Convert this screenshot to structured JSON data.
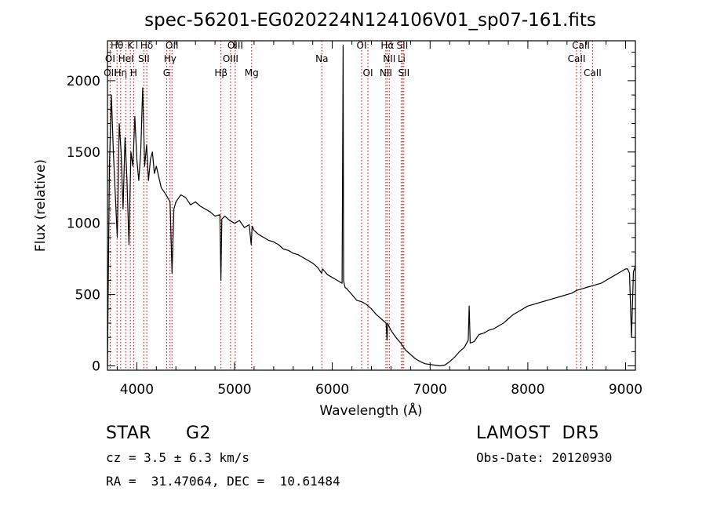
{
  "chart_data": {
    "type": "line",
    "title": "spec-56201-EG020224N124106V01_sp07-161.fits",
    "xlabel": "Wavelength (Å)",
    "ylabel": "Flux (relative)",
    "xlim": [
      3700,
      9100
    ],
    "ylim": [
      -30,
      2280
    ],
    "xticks": [
      4000,
      5000,
      6000,
      7000,
      8000,
      9000
    ],
    "yticks": [
      0,
      500,
      1000,
      1500,
      2000
    ],
    "grid": false,
    "series": [
      {
        "x": [
          3700,
          3720,
          3740,
          3760,
          3780,
          3800,
          3820,
          3840,
          3860,
          3880,
          3900,
          3920,
          3940,
          3960,
          3980,
          4000,
          4020,
          4040,
          4060,
          4080,
          4100,
          4120,
          4140,
          4160,
          4180,
          4200,
          4250,
          4300,
          4340,
          4360,
          4380,
          4400,
          4450,
          4500,
          4550,
          4600,
          4650,
          4700,
          4750,
          4800,
          4850,
          4860,
          4870,
          4900,
          4950,
          5000,
          5050,
          5100,
          5150,
          5170,
          5180,
          5200,
          5250,
          5300,
          5350,
          5400,
          5450,
          5500,
          5550,
          5600,
          5650,
          5700,
          5750,
          5800,
          5850,
          5890,
          5900,
          5950,
          6000,
          6050,
          6100,
          6110,
          6115,
          6120,
          6130,
          6150,
          6200,
          6250,
          6300,
          6350,
          6400,
          6450,
          6500,
          6550,
          6560,
          6565,
          6570,
          6600,
          6650,
          6700,
          6750,
          6800,
          6850,
          6900,
          6950,
          7000,
          7050,
          7100,
          7150,
          7200,
          7250,
          7300,
          7350,
          7390,
          7400,
          7410,
          7450,
          7500,
          7550,
          7600,
          7650,
          7700,
          7750,
          7800,
          7850,
          7900,
          7950,
          8000,
          8050,
          8100,
          8150,
          8200,
          8250,
          8300,
          8350,
          8400,
          8450,
          8500,
          8550,
          8600,
          8650,
          8700,
          8750,
          8800,
          8850,
          8900,
          8950,
          9000,
          9020,
          9040,
          9060,
          9080,
          9100
        ],
        "values": [
          0,
          1400,
          1900,
          1500,
          1200,
          900,
          1700,
          1500,
          1100,
          1600,
          1300,
          850,
          1500,
          1400,
          1750,
          1450,
          1300,
          1500,
          1950,
          1400,
          1550,
          1300,
          1450,
          1500,
          1350,
          1400,
          1250,
          1200,
          1150,
          650,
          1100,
          1150,
          1200,
          1180,
          1130,
          1150,
          1120,
          1100,
          1080,
          1050,
          1060,
          600,
          1030,
          1050,
          1020,
          1000,
          1020,
          970,
          990,
          850,
          980,
          950,
          920,
          900,
          880,
          870,
          850,
          820,
          810,
          790,
          780,
          760,
          740,
          720,
          690,
          650,
          680,
          640,
          620,
          600,
          580,
          2250,
          600,
          580,
          550,
          540,
          500,
          460,
          450,
          430,
          400,
          360,
          330,
          300,
          180,
          300,
          290,
          250,
          200,
          160,
          110,
          80,
          50,
          30,
          15,
          10,
          5,
          0,
          5,
          30,
          60,
          100,
          130,
          180,
          420,
          160,
          170,
          220,
          230,
          250,
          260,
          280,
          300,
          330,
          360,
          380,
          400,
          420,
          430,
          440,
          450,
          460,
          470,
          480,
          490,
          500,
          510,
          530,
          540,
          550,
          560,
          570,
          580,
          600,
          620,
          640,
          660,
          680,
          680,
          650,
          200,
          660,
          700
        ]
      }
    ],
    "line_labels": [
      {
        "text": "Hθ",
        "x": 3798,
        "row": 0
      },
      {
        "text": "K",
        "x": 3934,
        "row": 0
      },
      {
        "text": "Hδ",
        "x": 4102,
        "row": 0
      },
      {
        "text": "OII",
        "x": 4360,
        "row": 0
      },
      {
        "text": "OIII",
        "x": 5007,
        "row": 0
      },
      {
        "text": "OI",
        "x": 6300,
        "row": 0
      },
      {
        "text": "Hα",
        "x": 6563,
        "row": 0
      },
      {
        "text": "SII",
        "x": 6716,
        "row": 0
      },
      {
        "text": "CaII",
        "x": 8542,
        "row": 0
      },
      {
        "text": "OI",
        "x": 3727,
        "row": 1
      },
      {
        "text": "HeI",
        "x": 3889,
        "row": 1
      },
      {
        "text": "SII",
        "x": 4072,
        "row": 1
      },
      {
        "text": "Hγ",
        "x": 4340,
        "row": 1
      },
      {
        "text": "OIII",
        "x": 4959,
        "row": 1
      },
      {
        "text": "Na",
        "x": 5893,
        "row": 1
      },
      {
        "text": "NII",
        "x": 6583,
        "row": 1
      },
      {
        "text": "Li",
        "x": 6708,
        "row": 1
      },
      {
        "text": "CaII",
        "x": 8498,
        "row": 1
      },
      {
        "text": "OII",
        "x": 3727,
        "row": 2
      },
      {
        "text": "Hη",
        "x": 3835,
        "row": 2
      },
      {
        "text": "H",
        "x": 3968,
        "row": 2
      },
      {
        "text": "G",
        "x": 4305,
        "row": 2
      },
      {
        "text": "Hβ",
        "x": 4861,
        "row": 2
      },
      {
        "text": "Mg",
        "x": 5175,
        "row": 2
      },
      {
        "text": "OI",
        "x": 6364,
        "row": 2
      },
      {
        "text": "NII",
        "x": 6548,
        "row": 2
      },
      {
        "text": "SII",
        "x": 6731,
        "row": 2
      },
      {
        "text": "CaII",
        "x": 8662,
        "row": 2
      }
    ],
    "line_positions": [
      3727,
      3798,
      3835,
      3889,
      3934,
      3968,
      4072,
      4102,
      4305,
      4340,
      4360,
      4861,
      4959,
      5007,
      5175,
      5893,
      6300,
      6364,
      6548,
      6563,
      6583,
      6708,
      6716,
      6731,
      8498,
      8542,
      8662
    ]
  },
  "info": {
    "object_class": "STAR",
    "subclass": "G2",
    "survey": "LAMOST  DR5",
    "cz": "cz = 3.5 ± 6.3 km/s",
    "obs_date": "Obs-Date: 20120930",
    "coords": "RA =  31.47064, DEC =  10.61484"
  },
  "colors": {
    "spectrum": "#000000",
    "line_marker": "#cc0000",
    "background": "#ffffff"
  }
}
